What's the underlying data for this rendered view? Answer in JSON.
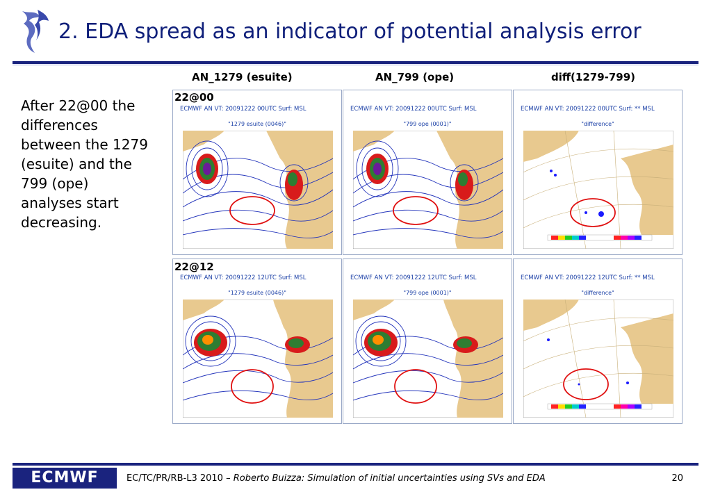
{
  "slide": {
    "title": "2. EDA spread as an indicator of potential analysis error",
    "columns": [
      "AN_1279 (esuite)",
      "AN_799 (ope)",
      "diff(1279-799)"
    ],
    "side_text": "After 22@00 the differences between the 1279 (esuite) and the 799 (ope) analyses start decreasing.",
    "rows": [
      {
        "label": "22@00",
        "panels": [
          {
            "header": "ECMWF  AN VT:  20091222 00UTC Surf: MSL",
            "sub": "\"1279 esuite (0046)\""
          },
          {
            "header": "ECMWF  AN VT:  20091222 00UTC Surf: MSL",
            "sub": "\"799 ope (0001)\""
          },
          {
            "header": "ECMWF  AN VT:  20091222 00UTC Surf: ** MSL",
            "sub": "\"difference\""
          }
        ]
      },
      {
        "label": "22@12",
        "panels": [
          {
            "header": "ECMWF  AN VT:  20091222 12UTC Surf: MSL",
            "sub": "\"1279 esuite (0046)\""
          },
          {
            "header": "ECMWF  AN VT:  20091222 12UTC Surf: MSL",
            "sub": "\"799 ope (0001)\""
          },
          {
            "header": "ECMWF  AN VT:  20091222 12UTC Surf: ** MSL",
            "sub": "\"difference\""
          }
        ]
      }
    ],
    "footer": {
      "logo": "ECMWF",
      "prefix": "EC/TC/PR/RB-L3 2010 – ",
      "italic": "Roberto Buizza: Simulation of initial uncertainties using SVs and EDA",
      "page": "20"
    }
  },
  "colors": {
    "title": "#0f1f7a",
    "rule": "#1a237e",
    "land": "#e8c98f",
    "isobar": "#2233bb",
    "highlight_ellipse": "#e01010"
  }
}
